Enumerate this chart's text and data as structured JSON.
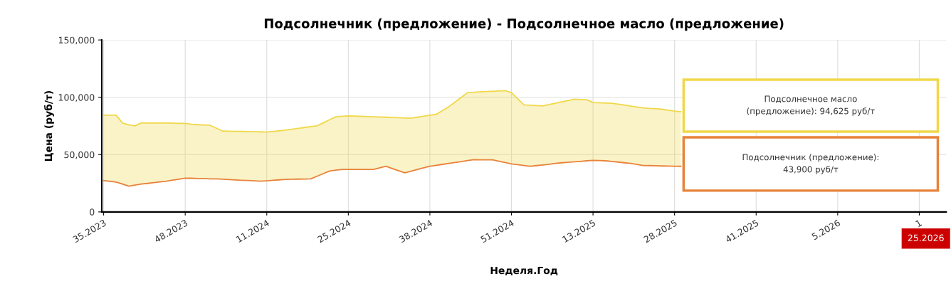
{
  "chart_data": {
    "type": "line",
    "title": "Подсолнечник (предложение) - Подсолнечное масло (предложение)",
    "xlabel": "Неделя.Год",
    "ylabel": "Цена (руб/т)",
    "categories": [
      "35.2023",
      null,
      null,
      null,
      null,
      null,
      null,
      null,
      null,
      null,
      null,
      null,
      null,
      "48.2023",
      null,
      null,
      null,
      null,
      null,
      null,
      null,
      null,
      null,
      null,
      null,
      null,
      "11.2024",
      null,
      null,
      null,
      null,
      null,
      null,
      null,
      null,
      null,
      null,
      null,
      null,
      "25.2024",
      null,
      null,
      null,
      null,
      null,
      null,
      null,
      null,
      null,
      null,
      null,
      null,
      "38.2024",
      null,
      null,
      null,
      null,
      null,
      null,
      null,
      null,
      null,
      null,
      null,
      null,
      "51.2024",
      null,
      null,
      null,
      null,
      null,
      null,
      null,
      null,
      null,
      null,
      null,
      null,
      "13.2025",
      null,
      null,
      null,
      null,
      null,
      null,
      null,
      null,
      null,
      null,
      null,
      null,
      "28.2025",
      null,
      null,
      null,
      null,
      null,
      null,
      null,
      null,
      null,
      null,
      null,
      null,
      "41.2025",
      null,
      null,
      null,
      null,
      null,
      null,
      null,
      null,
      null,
      null,
      null,
      null,
      "5.2026",
      null,
      null,
      null,
      null,
      null,
      null,
      null,
      null,
      null,
      null,
      null,
      null,
      "1",
      null,
      null,
      null,
      null
    ],
    "series": [
      {
        "color": "#e8823a",
        "values": [
          27400,
          26700,
          26000,
          24300,
          22500,
          23400,
          24300,
          24900,
          25600,
          26200,
          26800,
          27700,
          28600,
          29500,
          29400,
          29200,
          29100,
          28900,
          28800,
          28500,
          28200,
          27900,
          27600,
          27400,
          27100,
          26800,
          27200,
          27600,
          28000,
          28400,
          28500,
          28600,
          28700,
          28800,
          31100,
          33400,
          35700,
          36400,
          37100,
          37100,
          37100,
          37100,
          37100,
          37100,
          38500,
          39800,
          37900,
          36000,
          34100,
          35500,
          37000,
          38400,
          39800,
          40600,
          41500,
          42300,
          43100,
          43900,
          44800,
          45600,
          45500,
          45500,
          45400,
          44200,
          43100,
          41900,
          41200,
          40500,
          39800,
          40400,
          41000,
          41600,
          42300,
          42900,
          43300,
          43700,
          44100,
          44600,
          45000,
          44800,
          44600,
          44000,
          43500,
          42900,
          42300,
          41400,
          40500,
          40400,
          40300,
          40100,
          40000,
          39900,
          39800,
          null,
          null,
          null,
          null,
          null,
          null,
          null,
          null,
          null,
          null,
          null,
          null,
          null,
          null,
          null,
          null,
          null,
          null,
          null,
          null,
          null,
          null,
          null,
          null,
          null,
          null,
          null,
          null,
          null,
          null,
          null,
          null,
          null,
          null,
          null,
          null,
          null,
          null,
          null,
          null,
          null,
          null
        ]
      },
      {
        "type": "area",
        "color": "#f0d84a",
        "values": [
          84400,
          84400,
          84400,
          77600,
          76000,
          75100,
          77600,
          77600,
          77600,
          77600,
          77600,
          77400,
          77200,
          77200,
          76500,
          76100,
          75800,
          75500,
          73000,
          70500,
          70400,
          70300,
          70200,
          70100,
          70000,
          69900,
          69700,
          70300,
          70800,
          71400,
          72100,
          72900,
          73600,
          74400,
          75100,
          77700,
          80400,
          83000,
          83400,
          83800,
          83600,
          83400,
          83200,
          83000,
          82800,
          82600,
          82400,
          82200,
          81900,
          81700,
          82600,
          83500,
          84400,
          85100,
          88400,
          91700,
          95800,
          100000,
          104100,
          104400,
          104700,
          105000,
          105200,
          105500,
          105800,
          104100,
          98700,
          93400,
          93100,
          92800,
          92500,
          93700,
          94800,
          96000,
          97100,
          98300,
          98100,
          97900,
          95400,
          95200,
          95000,
          94800,
          94000,
          93200,
          92300,
          91500,
          90700,
          90300,
          90000,
          89600,
          88800,
          87900,
          87400,
          null,
          null,
          null,
          null,
          null,
          null,
          null,
          null,
          null,
          null,
          null,
          null,
          null,
          null,
          null,
          null,
          null,
          null,
          null,
          null,
          null,
          null,
          null,
          null,
          null,
          null,
          null,
          null,
          null,
          null,
          null,
          null,
          null,
          null,
          null,
          null,
          null,
          null,
          null,
          null,
          null,
          null
        ]
      }
    ],
    "ylim": [
      0,
      150000
    ],
    "yticks": [
      {
        "value": 0,
        "label": "0"
      },
      {
        "value": 50000,
        "label": "50,000"
      },
      {
        "value": 100000,
        "label": "100,000"
      },
      {
        "value": 150000,
        "label": "150,000"
      }
    ],
    "grid": true,
    "annotations": [
      "Подсолнечное масло\n(предложение): 94,625 руб/т",
      "Подсолнечник (предложение):\n43,900 руб/т",
      "25.2026"
    ]
  }
}
